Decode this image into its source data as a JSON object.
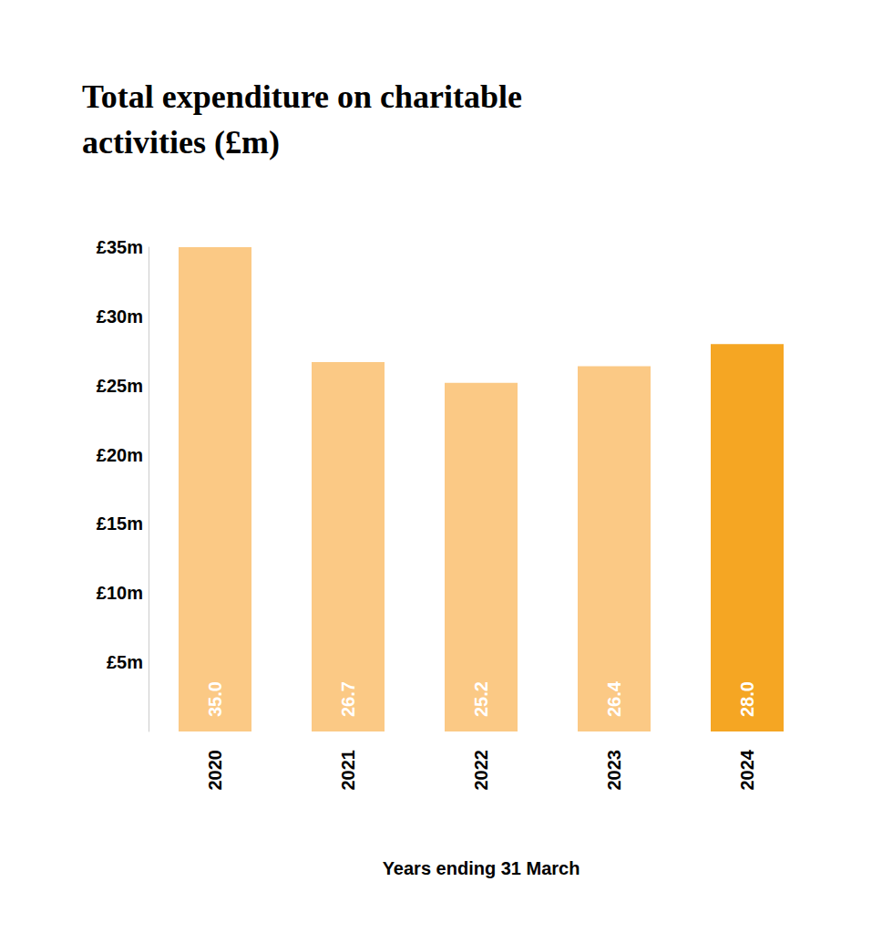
{
  "chart_data": {
    "type": "bar",
    "title": "Total expenditure on charitable activities (£m)",
    "x_label": "Years ending 31 March",
    "categories": [
      "2020",
      "2021",
      "2022",
      "2023",
      "2024"
    ],
    "values": [
      35.0,
      26.7,
      25.2,
      26.4,
      28.0
    ],
    "value_labels": [
      "35.0",
      "26.7",
      "25.2",
      "26.4",
      "28.0"
    ],
    "colors": [
      "#fbc985",
      "#fbc985",
      "#fbc985",
      "#fbc985",
      "#f5a623"
    ],
    "ylim": [
      0,
      35
    ],
    "yticks": [
      {
        "value": 5,
        "label": "£5m"
      },
      {
        "value": 10,
        "label": "£10m"
      },
      {
        "value": 15,
        "label": "£15m"
      },
      {
        "value": 20,
        "label": "£20m"
      },
      {
        "value": 25,
        "label": "£25m"
      },
      {
        "value": 30,
        "label": "£30m"
      },
      {
        "value": 35,
        "label": "£35m"
      }
    ],
    "grid": false,
    "data_labels": true
  }
}
